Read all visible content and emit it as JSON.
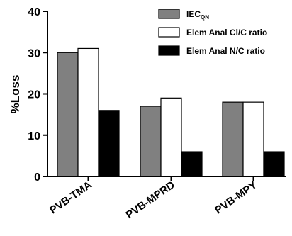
{
  "chart_data": {
    "type": "bar",
    "categories": [
      "PVB-TMA",
      "PVB-MPRD",
      "PVB-MPY"
    ],
    "series": [
      {
        "name": "IEC",
        "name_subscript": "QN",
        "color": "#808080",
        "values": [
          30,
          17,
          18
        ]
      },
      {
        "name": "Elem Anal Cl/C ratio",
        "color": "#ffffff",
        "values": [
          31,
          19,
          18
        ]
      },
      {
        "name": "Elem Anal N/C ratio",
        "color": "#000000",
        "values": [
          16,
          6,
          6
        ]
      }
    ],
    "ylabel": "%Loss",
    "ylim": [
      0,
      40
    ],
    "yticks": [
      0,
      10,
      20,
      30,
      40
    ],
    "grid": false,
    "legend_position": "top-right"
  }
}
